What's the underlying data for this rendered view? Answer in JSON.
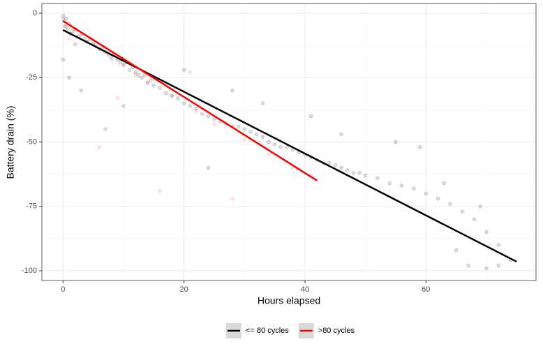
{
  "chart_data": {
    "type": "scatter",
    "x_label": "Hours elapsed",
    "y_label": "Battery drain (%)",
    "xlim": [
      -3.5,
      78.2
    ],
    "ylim": [
      -103.8,
      3.8
    ],
    "xticks": [
      0,
      20,
      40,
      60
    ],
    "yticks": [
      0,
      -25,
      -50,
      -75,
      -100
    ],
    "xminorticks": [
      10,
      30,
      50,
      70
    ],
    "yminorticks": [
      -12.5,
      -37.5,
      -62.5,
      -87.5
    ],
    "grid": true,
    "legend": "bottom",
    "series": [
      {
        "name": "<= 80 cycles",
        "color": "#000000",
        "x": [
          0,
          0.2,
          0.3,
          0.5,
          0.8,
          1,
          1.2,
          1.5,
          2,
          2.5,
          3,
          3.5,
          4,
          4.5,
          5,
          5.5,
          6,
          6.5,
          7,
          7.5,
          8,
          8.5,
          9,
          9.5,
          10,
          10.5,
          11,
          11.5,
          12,
          12.5,
          13,
          13.5,
          14,
          14.5,
          15,
          16,
          17,
          18,
          19,
          20,
          21,
          22,
          23,
          24,
          25,
          26,
          27,
          28,
          29,
          30,
          31,
          32,
          33,
          34,
          35,
          36,
          37,
          38,
          39,
          40,
          41,
          42,
          43,
          44,
          45,
          46,
          47,
          48,
          49,
          50,
          52,
          54,
          56,
          58,
          60,
          62,
          64,
          66,
          68,
          70,
          72,
          74,
          0,
          1,
          3,
          7,
          2,
          10,
          20,
          28,
          41,
          55,
          65,
          67,
          70,
          72,
          24,
          33,
          46,
          59,
          63,
          69
        ],
        "values": [
          -1,
          -3,
          -5,
          -2,
          -6,
          -4,
          -8,
          -7,
          -6,
          -9,
          -8,
          -10,
          -11,
          -10,
          -12,
          -13,
          -14,
          -13,
          -15,
          -16,
          -17,
          -16,
          -18,
          -19,
          -20,
          -19,
          -22,
          -21,
          -23,
          -24,
          -25,
          -24,
          -27,
          -26,
          -28,
          -29,
          -31,
          -32,
          -33,
          -35,
          -36,
          -37,
          -39,
          -40,
          -41,
          -42,
          -43,
          -44,
          -44,
          -45,
          -46,
          -47,
          -48,
          -50,
          -51,
          -52,
          -52,
          -53,
          -54,
          -55,
          -56,
          -57,
          -58,
          -58,
          -59,
          -60,
          -61,
          -62,
          -62,
          -63,
          -64,
          -66,
          -67,
          -68,
          -70,
          -72,
          -74,
          -77,
          -80,
          -85,
          -90,
          -96,
          -18,
          -25,
          -30,
          -45,
          -12,
          -36,
          -22,
          -30,
          -40,
          -50,
          -92,
          -98,
          -99,
          -98,
          -60,
          -35,
          -47,
          -52,
          -66,
          -75
        ]
      },
      {
        "name": ">80 cycles",
        "color": "#ff0000",
        "x": [
          0,
          0.5,
          1,
          2,
          3,
          4,
          5,
          6,
          8,
          9,
          10,
          12,
          14,
          16,
          18,
          21,
          22,
          25,
          28,
          30,
          34,
          38,
          41
        ],
        "values": [
          -2,
          -5,
          -10,
          -7,
          -9,
          -11,
          -12,
          -52,
          -18,
          -33,
          -20,
          -24,
          -27,
          -69,
          -32,
          -23,
          -38,
          -43,
          -72,
          -49,
          -55,
          -60,
          -63
        ]
      }
    ],
    "fits": [
      {
        "color": "#000000",
        "x": [
          0,
          75
        ],
        "values": [
          -6.5,
          -96.5
        ]
      },
      {
        "color": "#ff0000",
        "x": [
          0,
          42
        ],
        "values": [
          -3,
          -65
        ]
      }
    ]
  }
}
